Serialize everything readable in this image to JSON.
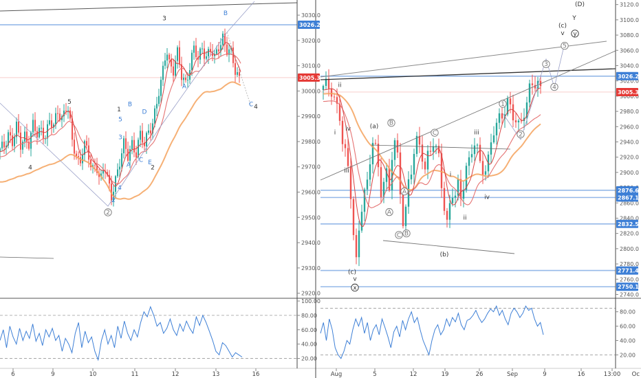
{
  "chart_data": [
    {
      "type": "candlestick",
      "panel": "left-price",
      "ylim": [
        2918,
        3036
      ],
      "yticks": [
        "3030.0",
        "3020.0",
        "3010.0",
        "3000.0",
        "2990.0",
        "2980.0",
        "2970.0",
        "2960.0",
        "2950.0",
        "2940.0",
        "2930.0",
        "2920.0"
      ],
      "xticks": [
        "6",
        "9",
        "10",
        "11",
        "12",
        "13",
        "16"
      ],
      "price_tags": [
        {
          "label": "3026.2",
          "value": 3026.2,
          "color": "#3d7fd6"
        },
        {
          "label": "3005.3",
          "value": 3005.3,
          "color": "#e53935"
        }
      ],
      "close_path": [
        [
          0,
          2976
        ],
        [
          6,
          2978
        ],
        [
          12,
          2984
        ],
        [
          18,
          2980
        ],
        [
          24,
          2985
        ],
        [
          30,
          2978
        ],
        [
          36,
          2983
        ],
        [
          42,
          2980
        ],
        [
          48,
          2986
        ],
        [
          54,
          2982
        ],
        [
          60,
          2985
        ],
        [
          66,
          2983
        ],
        [
          72,
          2988
        ],
        [
          78,
          2985
        ],
        [
          84,
          2992
        ],
        [
          90,
          2990
        ],
        [
          96,
          2994
        ],
        [
          100,
          2992
        ],
        [
          104,
          2980
        ],
        [
          110,
          2975
        ],
        [
          116,
          2972
        ],
        [
          122,
          2980
        ],
        [
          128,
          2974
        ],
        [
          134,
          2968
        ],
        [
          140,
          2972
        ],
        [
          146,
          2965
        ],
        [
          152,
          2970
        ],
        [
          158,
          2962
        ],
        [
          162,
          2958
        ],
        [
          166,
          2964
        ],
        [
          170,
          2968
        ],
        [
          174,
          2972
        ],
        [
          180,
          2978
        ],
        [
          186,
          2974
        ],
        [
          192,
          2980
        ],
        [
          198,
          2976
        ],
        [
          204,
          2982
        ],
        [
          210,
          2978
        ],
        [
          216,
          2985
        ],
        [
          222,
          2988
        ],
        [
          228,
          2995
        ],
        [
          234,
          3002
        ],
        [
          238,
          3010
        ],
        [
          242,
          3018
        ],
        [
          246,
          3012
        ],
        [
          252,
          3008
        ],
        [
          258,
          3014
        ],
        [
          264,
          3006
        ],
        [
          270,
          3004
        ],
        [
          276,
          3010
        ],
        [
          282,
          3016
        ],
        [
          288,
          3012
        ],
        [
          294,
          3018
        ],
        [
          300,
          3014
        ],
        [
          306,
          3016
        ],
        [
          312,
          3012
        ],
        [
          318,
          3018
        ],
        [
          324,
          3022
        ],
        [
          330,
          3016
        ],
        [
          336,
          3014
        ],
        [
          342,
          3008
        ],
        [
          348,
          3006
        ],
        [
          350,
          3003
        ]
      ],
      "wave_labels": [
        {
          "text": "5",
          "x": 101,
          "y": 2995,
          "color": "#333"
        },
        {
          "text": "4",
          "x": 44,
          "y": 2969,
          "color": "#333"
        },
        {
          "text": "3",
          "x": 239,
          "y": 3028,
          "color": "#333"
        },
        {
          "text": "1",
          "x": 173,
          "y": 2992,
          "color": "#333"
        },
        {
          "text": "2",
          "x": 222,
          "y": 2969,
          "color": "#333"
        },
        {
          "text": "4",
          "x": 372,
          "y": 2993,
          "color": "#333"
        },
        {
          "text": "B",
          "x": 328,
          "y": 3030,
          "color": "#3d7fd6"
        },
        {
          "text": "B",
          "x": 189,
          "y": 2994,
          "color": "#3d7fd6"
        },
        {
          "text": "5",
          "x": 175,
          "y": 2988,
          "color": "#3d7fd6"
        },
        {
          "text": "D",
          "x": 210,
          "y": 2991,
          "color": "#3d7fd6"
        },
        {
          "text": "3",
          "x": 175,
          "y": 2981,
          "color": "#3d7fd6"
        },
        {
          "text": "A",
          "x": 187,
          "y": 2970,
          "color": "#3d7fd6"
        },
        {
          "text": "C",
          "x": 205,
          "y": 2972,
          "color": "#3d7fd6"
        },
        {
          "text": "E",
          "x": 218,
          "y": 2971,
          "color": "#3d7fd6"
        },
        {
          "text": "A",
          "x": 268,
          "y": 3001,
          "color": "#3d7fd6"
        },
        {
          "text": "C",
          "x": 365,
          "y": 2994,
          "color": "#3d7fd6"
        },
        {
          "text": "4",
          "x": 174,
          "y": 2961,
          "color": "#3d7fd6"
        },
        {
          "text": "2",
          "x": 165,
          "y": 2956,
          "color": "#3d7fd6"
        }
      ],
      "circled_labels": [
        {
          "text": "2",
          "x": 157,
          "y": 2952
        }
      ]
    },
    {
      "type": "oscillator",
      "panel": "left-rsi",
      "ylim": [
        10,
        100
      ],
      "yticks": [
        "100.00",
        "80.00",
        "60.00",
        "40.00",
        "20.00"
      ],
      "levels": [
        80,
        20
      ],
      "values": [
        45,
        60,
        35,
        65,
        50,
        40,
        62,
        45,
        58,
        48,
        68,
        44,
        55,
        38,
        60,
        50,
        62,
        45,
        52,
        30,
        48,
        40,
        28,
        55,
        70,
        35,
        58,
        42,
        50,
        30,
        18,
        45,
        60,
        40,
        52,
        35,
        65,
        48,
        72,
        55,
        45,
        60,
        50,
        70,
        85,
        78,
        92,
        80,
        65,
        70,
        55,
        62,
        75,
        60,
        52,
        68,
        58,
        72,
        62,
        55,
        78,
        66,
        80,
        70,
        58,
        45,
        30,
        25,
        42,
        38,
        30,
        22,
        28,
        25,
        22
      ]
    },
    {
      "type": "candlestick",
      "panel": "right-price",
      "ylim": [
        2735,
        3126
      ],
      "yticks": [
        "3120.0",
        "3100.0",
        "3080.0",
        "3060.0",
        "3040.0",
        "3020.0",
        "3000.0",
        "2980.0",
        "2960.0",
        "2940.0",
        "2920.0",
        "2900.0",
        "2880.0",
        "2860.0",
        "2840.0",
        "2820.0",
        "2800.0",
        "2780.0",
        "2760.0",
        "2740.0"
      ],
      "xticks": [
        "Aug",
        "5",
        "12",
        "19",
        "26",
        "Sep",
        "9",
        "16",
        "13:00",
        "Oc"
      ],
      "price_tags": [
        {
          "label": "3026.2",
          "value": 3026.2,
          "color": "#3d7fd6"
        },
        {
          "label": "3005.3",
          "value": 3005.3,
          "color": "#e53935"
        },
        {
          "label": "2876.6",
          "value": 2876.6,
          "color": "#3d7fd6"
        },
        {
          "label": "2867.1",
          "value": 2867.1,
          "color": "#3d7fd6"
        },
        {
          "label": "2832.5",
          "value": 2832.5,
          "color": "#3d7fd6"
        },
        {
          "label": "2771.4",
          "value": 2771.4,
          "color": "#3d7fd6"
        },
        {
          "label": "2750.1",
          "value": 2750.1,
          "color": "#3d7fd6"
        }
      ],
      "close_path": [
        [
          470,
          3008
        ],
        [
          476,
          3012
        ],
        [
          482,
          3010
        ],
        [
          488,
          2995
        ],
        [
          494,
          2975
        ],
        [
          498,
          2940
        ],
        [
          502,
          2920
        ],
        [
          506,
          2900
        ],
        [
          510,
          2870
        ],
        [
          514,
          2820
        ],
        [
          518,
          2785
        ],
        [
          522,
          2830
        ],
        [
          526,
          2860
        ],
        [
          530,
          2875
        ],
        [
          534,
          2880
        ],
        [
          538,
          2910
        ],
        [
          542,
          2940
        ],
        [
          546,
          2930
        ],
        [
          550,
          2905
        ],
        [
          554,
          2880
        ],
        [
          558,
          2895
        ],
        [
          562,
          2900
        ],
        [
          566,
          2875
        ],
        [
          570,
          2920
        ],
        [
          574,
          2935
        ],
        [
          578,
          2915
        ],
        [
          582,
          2875
        ],
        [
          586,
          2840
        ],
        [
          590,
          2855
        ],
        [
          594,
          2890
        ],
        [
          598,
          2905
        ],
        [
          602,
          2925
        ],
        [
          606,
          2935
        ],
        [
          610,
          2930
        ],
        [
          614,
          2920
        ],
        [
          618,
          2905
        ],
        [
          622,
          2925
        ],
        [
          626,
          2935
        ],
        [
          630,
          2945
        ],
        [
          634,
          2930
        ],
        [
          638,
          2915
        ],
        [
          642,
          2880
        ],
        [
          646,
          2850
        ],
        [
          650,
          2830
        ],
        [
          654,
          2860
        ],
        [
          658,
          2880
        ],
        [
          662,
          2875
        ],
        [
          666,
          2885
        ],
        [
          670,
          2865
        ],
        [
          674,
          2880
        ],
        [
          678,
          2900
        ],
        [
          682,
          2910
        ],
        [
          686,
          2930
        ],
        [
          690,
          2945
        ],
        [
          694,
          2935
        ],
        [
          698,
          2915
        ],
        [
          702,
          2905
        ],
        [
          706,
          2900
        ],
        [
          710,
          2910
        ],
        [
          714,
          2935
        ],
        [
          718,
          2955
        ],
        [
          722,
          2965
        ],
        [
          726,
          2975
        ],
        [
          730,
          2980
        ],
        [
          734,
          2985
        ],
        [
          738,
          2990
        ],
        [
          742,
          2980
        ],
        [
          746,
          2970
        ],
        [
          750,
          2965
        ],
        [
          754,
          2960
        ],
        [
          758,
          2970
        ],
        [
          762,
          2985
        ],
        [
          766,
          2995
        ],
        [
          770,
          3010
        ],
        [
          774,
          3015
        ],
        [
          778,
          3012
        ],
        [
          782,
          3010
        ],
        [
          786,
          3005
        ]
      ],
      "wave_labels": [
        {
          "text": "(D)",
          "x": 843,
          "y": 3118,
          "color": "#333"
        },
        {
          "text": "Y",
          "x": 835,
          "y": 3100,
          "color": "#333"
        },
        {
          "text": "(c)",
          "x": 818,
          "y": 3090,
          "color": "#333"
        },
        {
          "text": "v",
          "x": 818,
          "y": 3080,
          "color": "#333"
        },
        {
          "text": "ii",
          "x": 494,
          "y": 3012,
          "color": "#333"
        },
        {
          "text": "i",
          "x": 487,
          "y": 2950,
          "color": "#333"
        },
        {
          "text": "iv",
          "x": 506,
          "y": 2955,
          "color": "#333"
        },
        {
          "text": "iii",
          "x": 504,
          "y": 2900,
          "color": "#333"
        },
        {
          "text": "(a)",
          "x": 544,
          "y": 2958,
          "color": "#333"
        },
        {
          "text": "(b)",
          "x": 646,
          "y": 2790,
          "color": "#333"
        },
        {
          "text": "(c)",
          "x": 512,
          "y": 2767,
          "color": "#333"
        },
        {
          "text": "v",
          "x": 516,
          "y": 2758,
          "color": "#333"
        },
        {
          "text": "iii",
          "x": 693,
          "y": 2950,
          "color": "#333"
        },
        {
          "text": "i",
          "x": 655,
          "y": 2895,
          "color": "#333"
        },
        {
          "text": "iv",
          "x": 708,
          "y": 2865,
          "color": "#333"
        },
        {
          "text": "ii",
          "x": 676,
          "y": 2838,
          "color": "#333"
        }
      ],
      "circled_labels": [
        {
          "text": "y",
          "x": 836,
          "y": 3082,
          "color": "#333"
        },
        {
          "text": "x",
          "x": 516,
          "y": 2749,
          "color": "#333"
        },
        {
          "text": "B",
          "x": 569,
          "y": 2965
        },
        {
          "text": "C",
          "x": 632,
          "y": 2952
        },
        {
          "text": "A",
          "x": 588,
          "y": 2875
        },
        {
          "text": "A",
          "x": 566,
          "y": 2848
        },
        {
          "text": "C",
          "x": 580,
          "y": 2818
        },
        {
          "text": "B",
          "x": 591,
          "y": 2820
        },
        {
          "text": "1",
          "x": 731,
          "y": 2990
        },
        {
          "text": "2",
          "x": 757,
          "y": 2950
        },
        {
          "text": "3",
          "x": 794,
          "y": 3042
        },
        {
          "text": "4",
          "x": 806,
          "y": 3012
        },
        {
          "text": "5",
          "x": 821,
          "y": 3066
        }
      ]
    },
    {
      "type": "oscillator",
      "panel": "right-rsi",
      "ylim": [
        5,
        95
      ],
      "yticks": [
        "80.00",
        "60.00",
        "40.00",
        "20.00"
      ],
      "levels": [
        85,
        20
      ],
      "values": [
        50,
        65,
        40,
        70,
        55,
        30,
        20,
        15,
        25,
        40,
        35,
        55,
        70,
        60,
        72,
        50,
        65,
        40,
        55,
        62,
        48,
        70,
        58,
        45,
        30,
        52,
        60,
        45,
        68,
        55,
        70,
        80,
        65,
        72,
        55,
        40,
        30,
        20,
        40,
        55,
        62,
        48,
        55,
        70,
        60,
        72,
        66,
        78,
        62,
        55,
        68,
        70,
        75,
        82,
        72,
        65,
        70,
        78,
        84,
        80,
        88,
        75,
        82,
        70,
        62,
        78,
        85,
        80,
        72,
        78,
        88,
        82,
        85,
        70,
        60,
        65,
        48
      ]
    }
  ]
}
